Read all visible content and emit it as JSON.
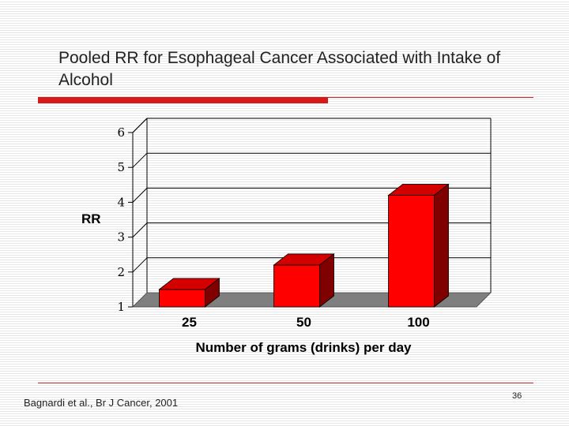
{
  "slide": {
    "title": "Pooled RR for Esophageal Cancer Associated with Intake of Alcohol",
    "citation": "Bagnardi et al., Br J Cancer, 2001",
    "page_number": "36"
  },
  "colors": {
    "accent": "#d61a1a",
    "bar_front": "#ff0000",
    "bar_top": "#d40000",
    "bar_side": "#800000",
    "floor": "#7f7f7f"
  },
  "chart_data": {
    "type": "bar",
    "categories": [
      "25",
      "50",
      "100"
    ],
    "values": [
      1.5,
      2.2,
      4.2
    ],
    "title": "",
    "xlabel": "Number of grams (drinks) per day",
    "ylabel": "RR",
    "ylim": [
      1,
      6
    ],
    "yticks": [
      "1",
      "2",
      "3",
      "4",
      "5",
      "6"
    ],
    "grid": true,
    "legend": "none"
  }
}
